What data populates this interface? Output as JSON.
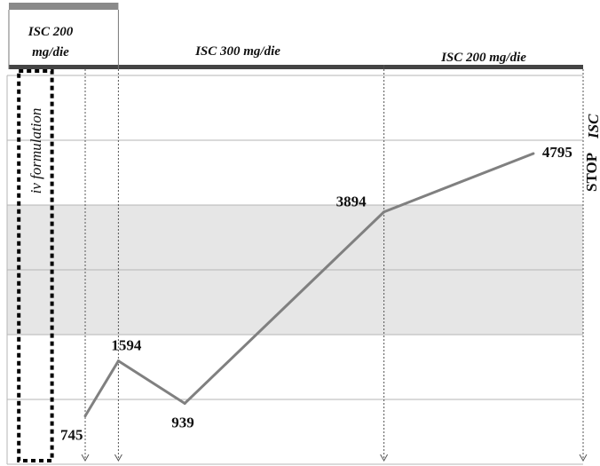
{
  "chart_data": {
    "type": "line",
    "ylim": [
      0,
      6000
    ],
    "grid": true,
    "shaded_band": [
      2000,
      4000
    ],
    "series": [
      {
        "points": [
          {
            "x": 0,
            "y": 745,
            "label": "745"
          },
          {
            "x": 1,
            "y": 1594,
            "label": "1594"
          },
          {
            "x": 3,
            "y": 939,
            "label": "939"
          },
          {
            "x": 9,
            "y": 3894,
            "label": "3894"
          },
          {
            "x": 13.5,
            "y": 4795,
            "label": "4795"
          }
        ]
      }
    ],
    "phases": [
      {
        "label_lines": [
          "ISC 200",
          "mg/die"
        ],
        "x_start": -2.3,
        "x_end": 0
      },
      {
        "label_lines": [
          "ISC 300 mg/die"
        ],
        "x_start": 0,
        "x_end": 9
      },
      {
        "label_lines": [
          "ISC 200 mg/die"
        ],
        "x_start": 9,
        "x_end": 15
      }
    ],
    "iv_bar": {
      "x_start": -2.3,
      "x_end": 1
    },
    "iv_box": {
      "label": "iv formulation",
      "x_start": -2.0,
      "x_end": -1.0
    },
    "event_markers": [
      0,
      1,
      9,
      15
    ],
    "stop_label": {
      "line1": "STOP",
      "line2": "ISC"
    }
  },
  "colors": {
    "line": "#808080",
    "grid": "#b5b5b5",
    "band": "#e6e6e6",
    "phase_bar": "#444444",
    "iv_bar": "#8a8a8a",
    "arrows": "#555555",
    "dotted_box": "#000000"
  }
}
